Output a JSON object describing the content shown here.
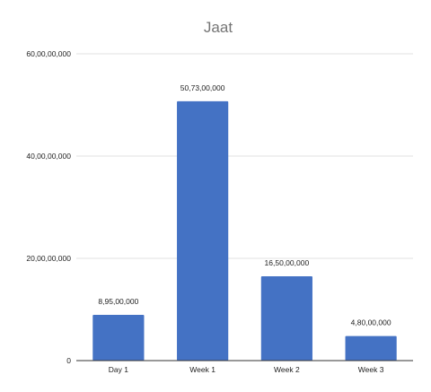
{
  "chart_data": {
    "type": "bar",
    "title": "Jaat",
    "xlabel": "",
    "ylabel": "",
    "categories": [
      "Day 1",
      "Week 1",
      "Week 2",
      "Week 3"
    ],
    "values": [
      89500000,
      507300000,
      165000000,
      48000000
    ],
    "data_labels": [
      "8,95,00,000",
      "50,73,00,000",
      "16,50,00,000",
      "4,80,00,000"
    ],
    "ylim": [
      0,
      600000000
    ],
    "yticks": [
      0,
      200000000,
      400000000,
      600000000
    ],
    "ytick_labels": [
      "0",
      "20,00,00,000",
      "40,00,00,000",
      "60,00,00,000"
    ],
    "grid": true,
    "legend": "none",
    "bar_color": "#4472c4"
  }
}
